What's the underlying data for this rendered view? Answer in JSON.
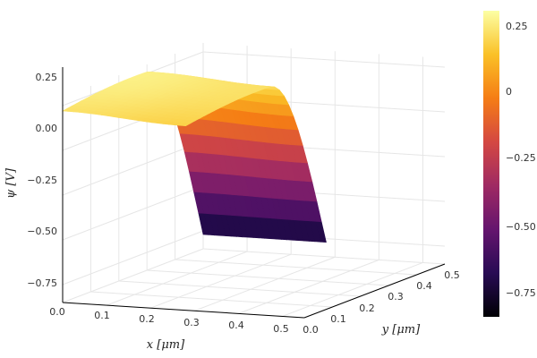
{
  "chart_data": {
    "type": "surface",
    "title": "",
    "xlabel": "x [μm]",
    "ylabel": "y [μm]",
    "zlabel": "ψ [V]",
    "x_ticks": [
      "0.0",
      "0.1",
      "0.2",
      "0.3",
      "0.4",
      "0.5"
    ],
    "y_ticks": [
      "0.0",
      "0.1",
      "0.2",
      "0.3",
      "0.4",
      "0.5"
    ],
    "z_ticks": [
      "0.25",
      "0.00",
      "−0.25",
      "−0.50",
      "−0.75"
    ],
    "colorbar_ticks": [
      "0.25",
      "0",
      "−0.25",
      "−0.50",
      "−0.75"
    ],
    "xlim": [
      0,
      0.55
    ],
    "ylim": [
      0,
      0.5
    ],
    "zlim": [
      -0.85,
      0.3
    ],
    "colorbar_range": [
      -0.85,
      0.3
    ],
    "colormap": "inferno",
    "grid": true,
    "surface_profile": {
      "x_end": 0.28,
      "psi_plateau": 0.2,
      "psi_min": -0.77,
      "y_junction": 0.3
    }
  },
  "colors": {
    "plateau": "#f7e35a",
    "cmap_stops": [
      "#000004",
      "#280b54",
      "#65156e",
      "#9f2a63",
      "#d44842",
      "#f57d15",
      "#fac127",
      "#fcffa4"
    ]
  }
}
